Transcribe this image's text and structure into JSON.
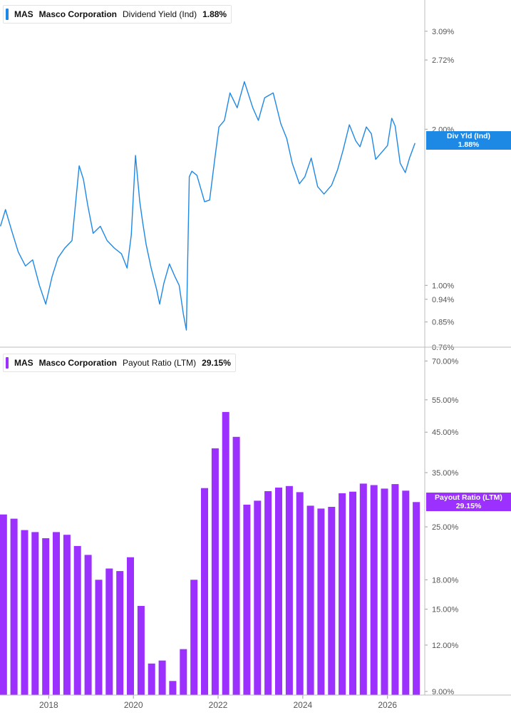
{
  "colors": {
    "yield_line": "#1e88e5",
    "payout_bar": "#9b30ff",
    "grid": "#d9d9d9",
    "axis_text": "#555555"
  },
  "top_legend": {
    "ticker": "MAS",
    "company": "Masco Corporation",
    "metric": "Dividend Yield (Ind)",
    "value": "1.88%"
  },
  "top_pill": {
    "line1": "Div Yld (Ind)",
    "line2": "1.88%"
  },
  "bottom_legend": {
    "ticker": "MAS",
    "company": "Masco Corporation",
    "metric": "Payout Ratio (LTM)",
    "value": "29.15%"
  },
  "bottom_pill": {
    "line1": "Payout Ratio (LTM)",
    "line2": "29.15%"
  },
  "x_axis": {
    "ticks": [
      {
        "label": "2018",
        "value": 2018.0
      },
      {
        "label": "2020",
        "value": 2020.0
      },
      {
        "label": "2022",
        "value": 2022.0
      },
      {
        "label": "2024",
        "value": 2024.0
      },
      {
        "label": "2026",
        "value": 2026.0
      }
    ]
  },
  "chart_data": [
    {
      "type": "line",
      "scale": "log",
      "series": [
        {
          "name": "Dividend Yield (Ind)",
          "x": [
            2016.86,
            2016.98,
            2017.12,
            2017.28,
            2017.45,
            2017.62,
            2017.78,
            2017.93,
            2018.08,
            2018.22,
            2018.38,
            2018.55,
            2018.72,
            2018.82,
            2018.92,
            2019.05,
            2019.22,
            2019.38,
            2019.55,
            2019.72,
            2019.85,
            2019.95,
            2020.05,
            2020.15,
            2020.22,
            2020.3,
            2020.42,
            2020.55,
            2020.62,
            2020.72,
            2020.85,
            2020.98,
            2021.08,
            2021.18,
            2021.25,
            2021.32,
            2021.38,
            2021.5,
            2021.68,
            2021.8,
            2021.92,
            2022.02,
            2022.15,
            2022.28,
            2022.45,
            2022.62,
            2022.82,
            2022.95,
            2023.1,
            2023.3,
            2023.48,
            2023.62,
            2023.75,
            2023.92,
            2024.05,
            2024.2,
            2024.35,
            2024.5,
            2024.68,
            2024.82,
            2024.95,
            2025.1,
            2025.25,
            2025.35,
            2025.5,
            2025.62,
            2025.72,
            2025.85,
            2026.0,
            2026.1,
            2026.18,
            2026.3,
            2026.42,
            2026.52,
            2026.65
          ],
          "y": [
            1.3,
            1.4,
            1.28,
            1.16,
            1.09,
            1.12,
            1.0,
            0.92,
            1.04,
            1.13,
            1.18,
            1.22,
            1.7,
            1.6,
            1.43,
            1.26,
            1.3,
            1.22,
            1.18,
            1.15,
            1.08,
            1.25,
            1.78,
            1.45,
            1.32,
            1.2,
            1.08,
            0.98,
            0.92,
            1.01,
            1.1,
            1.04,
            1.0,
            0.88,
            0.82,
            1.62,
            1.66,
            1.63,
            1.45,
            1.46,
            1.75,
            2.02,
            2.08,
            2.35,
            2.2,
            2.47,
            2.2,
            2.08,
            2.3,
            2.35,
            2.05,
            1.92,
            1.72,
            1.57,
            1.62,
            1.76,
            1.55,
            1.5,
            1.56,
            1.67,
            1.82,
            2.04,
            1.9,
            1.85,
            2.02,
            1.96,
            1.75,
            1.8,
            1.86,
            2.1,
            2.03,
            1.72,
            1.65,
            1.76,
            1.88
          ]
        }
      ],
      "y_ticks": [
        "0.76%",
        "0.85%",
        "0.94%",
        "1.00%",
        "2.00%",
        "2.72%",
        "3.09%"
      ],
      "ylim": [
        0.76,
        3.55
      ]
    },
    {
      "type": "bar",
      "scale": "log",
      "series": [
        {
          "name": "Payout Ratio (LTM)",
          "x": [
            2016.93,
            2017.18,
            2017.43,
            2017.68,
            2017.93,
            2018.18,
            2018.43,
            2018.68,
            2018.93,
            2019.18,
            2019.43,
            2019.68,
            2019.93,
            2020.18,
            2020.43,
            2020.68,
            2020.93,
            2021.18,
            2021.43,
            2021.68,
            2021.93,
            2022.18,
            2022.43,
            2022.68,
            2022.93,
            2023.18,
            2023.43,
            2023.68,
            2023.93,
            2024.18,
            2024.43,
            2024.68,
            2024.93,
            2025.18,
            2025.43,
            2025.68,
            2025.93,
            2026.18,
            2026.43,
            2026.68
          ],
          "y": [
            27.0,
            26.3,
            24.5,
            24.2,
            23.3,
            24.2,
            23.8,
            22.2,
            21.0,
            18.0,
            19.3,
            19.0,
            20.7,
            15.3,
            10.7,
            10.9,
            9.6,
            11.7,
            18.0,
            31.8,
            40.7,
            51.0,
            43.7,
            28.7,
            29.4,
            31.2,
            31.9,
            32.2,
            31.0,
            28.5,
            28.0,
            28.3,
            30.8,
            31.1,
            32.7,
            32.4,
            31.7,
            32.6,
            31.3,
            29.15
          ]
        }
      ],
      "y_ticks": [
        "9.00%",
        "12.00%",
        "15.00%",
        "18.00%",
        "25.00%",
        "35.00%",
        "45.00%",
        "55.00%",
        "70.00%"
      ],
      "ylim": [
        8.8,
        72.0
      ]
    }
  ]
}
